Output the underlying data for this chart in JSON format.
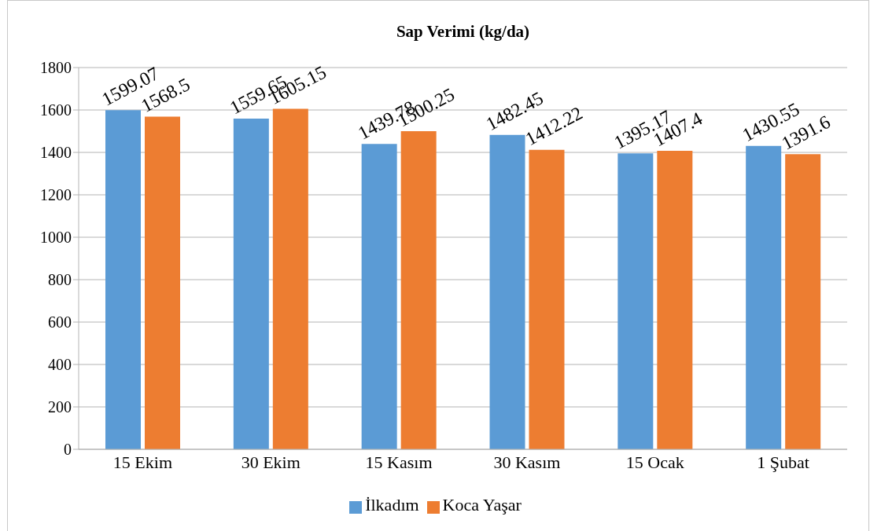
{
  "chart_data": {
    "type": "bar",
    "title": "Sap Verimi (kg/da)",
    "categories": [
      "15 Ekim",
      "30 Ekim",
      "15 Kasım",
      "30 Kasım",
      "15 Ocak",
      "1 Şubat"
    ],
    "series": [
      {
        "name": "İlkadım",
        "color": "#5b9bd5",
        "values": [
          1599.07,
          1559.65,
          1439.78,
          1482.45,
          1395.17,
          1430.55
        ]
      },
      {
        "name": "Koca Yaşar",
        "color": "#ed7d31",
        "values": [
          1568.5,
          1605.15,
          1500.25,
          1412.22,
          1407.4,
          1391.6
        ]
      }
    ],
    "ylim": [
      0,
      1800
    ],
    "yticks": [
      0,
      200,
      400,
      600,
      800,
      1000,
      1200,
      1400,
      1600,
      1800
    ],
    "grid": "y",
    "legend": "bottom",
    "data_labels": true
  }
}
